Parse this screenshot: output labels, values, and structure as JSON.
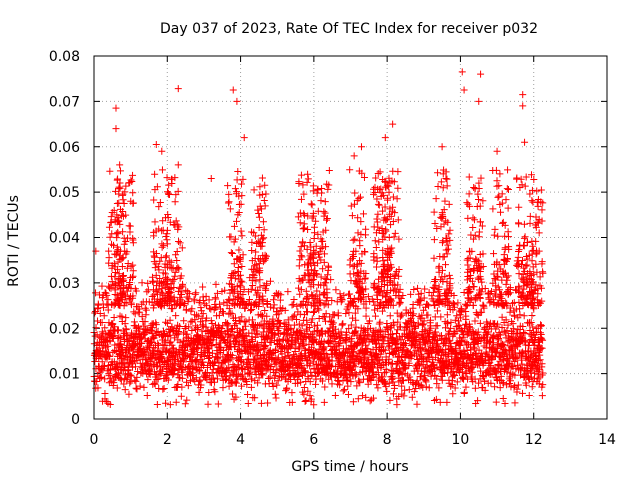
{
  "chart_data": {
    "type": "scatter",
    "title": "Day 037 of 2023, Rate Of TEC Index for receiver p032",
    "xlabel": "GPS time / hours",
    "ylabel": "ROTI / TECUs",
    "xlim": [
      0,
      14
    ],
    "ylim": [
      0,
      0.08
    ],
    "grid": true,
    "marker": "+",
    "marker_color": "#ff0000",
    "x_ticks": [
      0,
      2,
      4,
      6,
      8,
      10,
      12,
      14
    ],
    "x_tick_labels": [
      "0",
      "2",
      "4",
      "6",
      "8",
      "10",
      "12",
      "14"
    ],
    "y_ticks": [
      0,
      0.01,
      0.02,
      0.03,
      0.04,
      0.05,
      0.06,
      0.07,
      0.08
    ],
    "y_tick_labels": [
      "0",
      "0.01",
      "0.02",
      "0.03",
      "0.04",
      "0.05",
      "0.06",
      "0.07",
      "0.08"
    ],
    "series": [
      {
        "name": "ROTI",
        "x_range": [
          0,
          12.25
        ],
        "note": "dense cloud of several thousand samples, most between 0.005 and 0.03 TECU/min",
        "peaks": [
          {
            "x": 0.05,
            "y": 0.037
          },
          {
            "x": 0.6,
            "y": 0.0685
          },
          {
            "x": 0.6,
            "y": 0.064
          },
          {
            "x": 0.7,
            "y": 0.056
          },
          {
            "x": 0.95,
            "y": 0.052
          },
          {
            "x": 1.7,
            "y": 0.0605
          },
          {
            "x": 1.85,
            "y": 0.059
          },
          {
            "x": 2.3,
            "y": 0.0728
          },
          {
            "x": 2.3,
            "y": 0.056
          },
          {
            "x": 3.2,
            "y": 0.053
          },
          {
            "x": 3.8,
            "y": 0.0725
          },
          {
            "x": 3.9,
            "y": 0.07
          },
          {
            "x": 4.1,
            "y": 0.062
          },
          {
            "x": 6.1,
            "y": 0.0505
          },
          {
            "x": 7.1,
            "y": 0.058
          },
          {
            "x": 7.3,
            "y": 0.06
          },
          {
            "x": 7.95,
            "y": 0.062
          },
          {
            "x": 8.15,
            "y": 0.065
          },
          {
            "x": 9.5,
            "y": 0.06
          },
          {
            "x": 10.05,
            "y": 0.0765
          },
          {
            "x": 10.1,
            "y": 0.0725
          },
          {
            "x": 10.55,
            "y": 0.076
          },
          {
            "x": 10.5,
            "y": 0.07
          },
          {
            "x": 11.0,
            "y": 0.059
          },
          {
            "x": 11.7,
            "y": 0.0715
          },
          {
            "x": 11.7,
            "y": 0.069
          },
          {
            "x": 11.75,
            "y": 0.061
          },
          {
            "x": 12.15,
            "y": 0.044
          }
        ],
        "activity_bursts": [
          0.6,
          0.85,
          1.8,
          2.2,
          3.85,
          4.5,
          5.8,
          6.2,
          7.2,
          7.85,
          8.1,
          9.5,
          10.4,
          11.1,
          11.75,
          12.15
        ]
      }
    ]
  }
}
